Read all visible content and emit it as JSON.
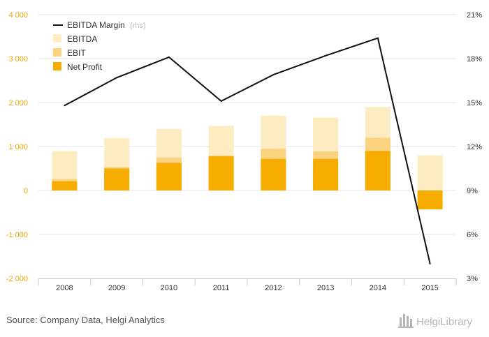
{
  "chart_data": {
    "type": "bar",
    "categories": [
      "2008",
      "2009",
      "2010",
      "2011",
      "2012",
      "2013",
      "2014",
      "2015"
    ],
    "series": [
      {
        "name": "EBITDA",
        "values": [
          900,
          1190,
          1400,
          1470,
          1700,
          1660,
          1900,
          800
        ],
        "color": "#fdebc2"
      },
      {
        "name": "EBIT",
        "values": [
          260,
          530,
          750,
          790,
          950,
          890,
          1200,
          0
        ],
        "color": "#fbd381"
      },
      {
        "name": "Net Profit",
        "values": [
          210,
          500,
          630,
          780,
          720,
          720,
          900,
          -430
        ],
        "color": "#f7ad00"
      }
    ],
    "line_series": {
      "name": "EBITDA Margin",
      "suffix": "(rhs)",
      "values": [
        14.8,
        16.7,
        18.1,
        15.1,
        16.9,
        18.2,
        19.4,
        4.0
      ],
      "color": "#111111"
    },
    "left_axis": {
      "ylim": [
        -2000,
        4000
      ],
      "ticks": [
        -2000,
        -1000,
        0,
        1000,
        2000,
        3000,
        4000
      ],
      "tick_labels": [
        "-2 000",
        "-1 000",
        "0",
        "1 000",
        "2 000",
        "3 000",
        "4 000"
      ]
    },
    "right_axis": {
      "ylim": [
        3,
        21
      ],
      "ticks": [
        3,
        6,
        9,
        12,
        15,
        18,
        21
      ],
      "tick_labels": [
        "3%",
        "6%",
        "9%",
        "12%",
        "15%",
        "18%",
        "21%"
      ]
    },
    "grid": true,
    "legend": "top-left",
    "title": "",
    "xlabel": "",
    "ylabel": ""
  },
  "footer": {
    "source": "Source: Company Data, Helgi Analytics",
    "brand": "HelgiLibrary"
  },
  "icons": {
    "brand_logo": "helgi-library-logo"
  }
}
